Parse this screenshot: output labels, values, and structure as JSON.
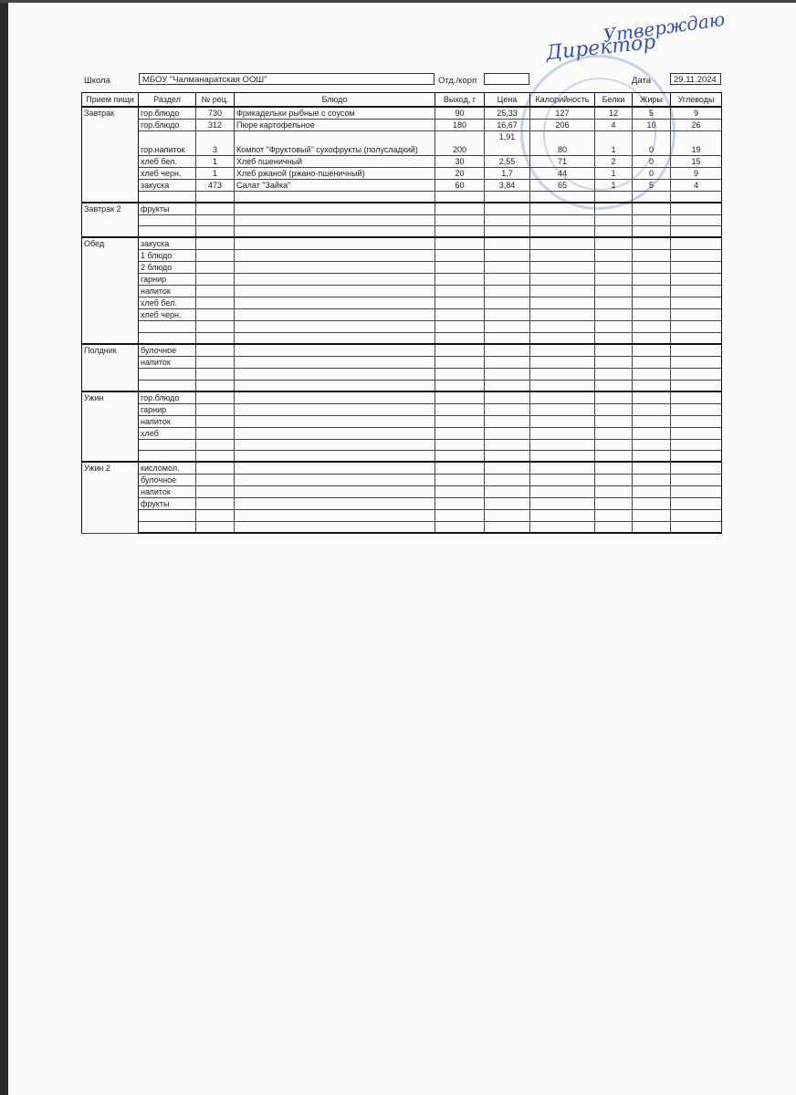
{
  "signature": {
    "line1": "Утверждаю",
    "line2": "Директор"
  },
  "stamp_color": "#4664c8",
  "header": {
    "school_label": "Школа",
    "school_value": "МБОУ \"Чалманаратская ООШ\"",
    "dept_label": "Отд./корп",
    "dept_value": "",
    "date_label": "Дата",
    "date_value": "29.11.2024"
  },
  "columns": [
    "Прием пищи",
    "Раздел",
    "№ рец.",
    "Блюдо",
    "Выход, г",
    "Цена",
    "Калорийность",
    "Белки",
    "Жиры",
    "Углеводы"
  ],
  "sections": [
    {
      "meal": "Завтрак",
      "rows": [
        {
          "section": "гор.блюдо",
          "rec": "730",
          "dish": "Фрикадельки рыбные с соусом",
          "yield": "90",
          "price": "25,33",
          "kcal": "127",
          "protein": "12",
          "fat": "5",
          "carbs": "9"
        },
        {
          "section": "гор.блюдо",
          "rec": "312",
          "dish": "Пюре картофельное",
          "yield": "180",
          "price": "16,67",
          "kcal": "206",
          "protein": "4",
          "fat": "10",
          "carbs": "26"
        },
        {
          "section": "гор.напиток",
          "rec": "3",
          "dish": "Компот \"Фруктовый\" сухофрукты (полусладкий)",
          "yield": "200",
          "price": "1,91",
          "kcal": "80",
          "protein": "1",
          "fat": "0",
          "carbs": "19",
          "tall": true
        },
        {
          "section": "хлеб бел.",
          "rec": "1",
          "dish": "Хлеб пшеничный",
          "yield": "30",
          "price": "2,55",
          "kcal": "71",
          "protein": "2",
          "fat": "0",
          "carbs": "15"
        },
        {
          "section": "хлеб черн.",
          "rec": "1",
          "dish": "Хлеб ржаной (ржано-пшеничный)",
          "yield": "20",
          "price": "1,7",
          "kcal": "44",
          "protein": "1",
          "fat": "0",
          "carbs": "9"
        },
        {
          "section": "закуска",
          "rec": "473",
          "dish": "Салат \"Зайка\"",
          "yield": "60",
          "price": "3,84",
          "kcal": "65",
          "protein": "1",
          "fat": "5",
          "carbs": "4"
        },
        {}
      ]
    },
    {
      "meal": "Завтрак 2",
      "rows": [
        {
          "section": "фрукты"
        },
        {},
        {}
      ]
    },
    {
      "meal": "Обед",
      "rows": [
        {
          "section": "закуска"
        },
        {
          "section": "1 блюдо"
        },
        {
          "section": "2 блюдо"
        },
        {
          "section": "гарнир"
        },
        {
          "section": "напиток"
        },
        {
          "section": "хлеб бел."
        },
        {
          "section": "хлеб черн."
        },
        {},
        {}
      ]
    },
    {
      "meal": "Полдник",
      "rows": [
        {
          "section": "булочное"
        },
        {
          "section": "напиток"
        },
        {},
        {}
      ]
    },
    {
      "meal": "Ужин",
      "rows": [
        {
          "section": "гор.блюдо"
        },
        {
          "section": "гарнир"
        },
        {
          "section": "напиток"
        },
        {
          "section": "хлеб"
        },
        {},
        {}
      ]
    },
    {
      "meal": "Ужин 2",
      "rows": [
        {
          "section": "кисломол."
        },
        {
          "section": "булочное"
        },
        {
          "section": "напиток"
        },
        {
          "section": "фрукты"
        },
        {},
        {}
      ]
    }
  ]
}
